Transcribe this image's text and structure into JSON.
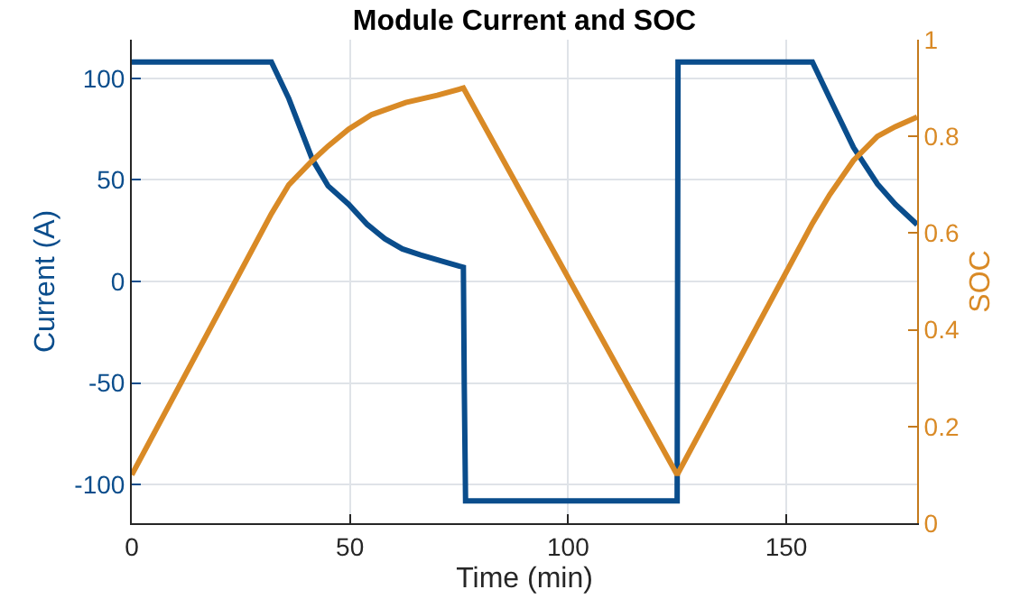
{
  "chart_data": {
    "type": "line",
    "title": "Module Current and SOC",
    "xlabel": "Time (min)",
    "ylabel": "Current (A)",
    "y2label": "SOC",
    "xlim": [
      0,
      180
    ],
    "xticks": [
      0,
      50,
      100,
      150
    ],
    "ylim": [
      -119,
      119
    ],
    "yticks": [
      -100,
      -50,
      0,
      50,
      100
    ],
    "y2lim": [
      0,
      1
    ],
    "y2ticks": [
      0,
      0.2,
      0.4,
      0.6,
      0.8,
      1
    ],
    "grid": true,
    "marker": "none",
    "line_style": "solid",
    "series": [
      {
        "color": "#0a4d8c",
        "x": [
          0,
          32,
          36,
          41.4,
          45,
          49.7,
          54,
          58,
          62,
          66.2,
          71,
          76,
          76.2,
          76.5,
          125,
          125.2,
          156,
          160,
          165.4,
          170.9,
          175,
          180
        ],
        "values": [
          108,
          108,
          90,
          60,
          47,
          38,
          28,
          21,
          16,
          13,
          10,
          7,
          -50,
          -108,
          -108,
          108,
          108,
          90,
          66,
          48,
          38,
          28
        ]
      },
      {
        "color": "#d98a26",
        "axis": "y2",
        "x": [
          0,
          32,
          36,
          41.4,
          45,
          49.7,
          55,
          62.8,
          70,
          76,
          125,
          156,
          160,
          165.4,
          170.9,
          175,
          180
        ],
        "values": [
          0.1,
          0.64,
          0.7,
          0.75,
          0.78,
          0.815,
          0.845,
          0.87,
          0.885,
          0.9,
          0.1,
          0.62,
          0.68,
          0.75,
          0.8,
          0.82,
          0.84
        ]
      }
    ]
  }
}
